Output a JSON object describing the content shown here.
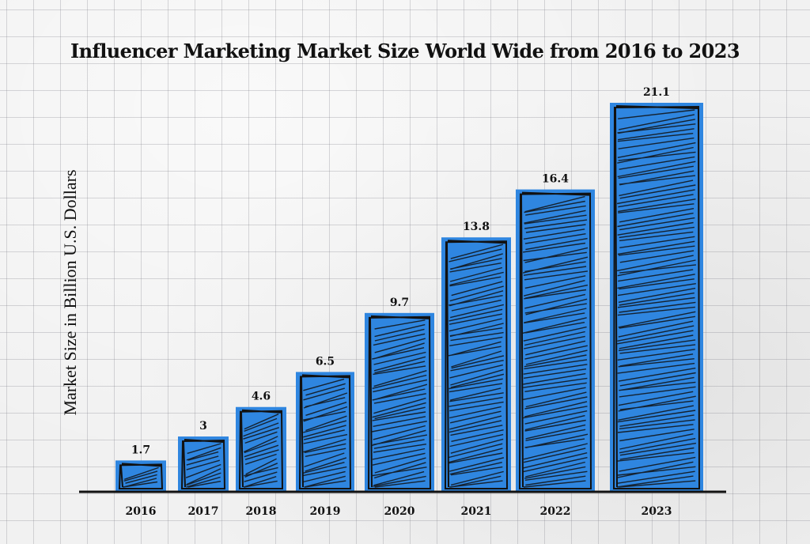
{
  "chart_data": {
    "type": "bar",
    "title": "Influencer Marketing Market Size World Wide from 2016 to 2023",
    "xlabel": "",
    "ylabel": "Market Size in Billion U.S. Dollars",
    "categories": [
      "2016",
      "2017",
      "2018",
      "2019",
      "2020",
      "2021",
      "2022",
      "2023"
    ],
    "values": [
      1.7,
      3,
      4.6,
      6.5,
      9.7,
      13.8,
      16.4,
      21.1
    ],
    "value_labels": [
      "1.7",
      "3",
      "4.6",
      "6.5",
      "9.7",
      "13.8",
      "16.4",
      "21.1"
    ],
    "ylim": [
      0,
      22
    ],
    "grid": true,
    "legend": "none",
    "bar_color": "#2f86e0",
    "scribble_color": "#111111"
  }
}
